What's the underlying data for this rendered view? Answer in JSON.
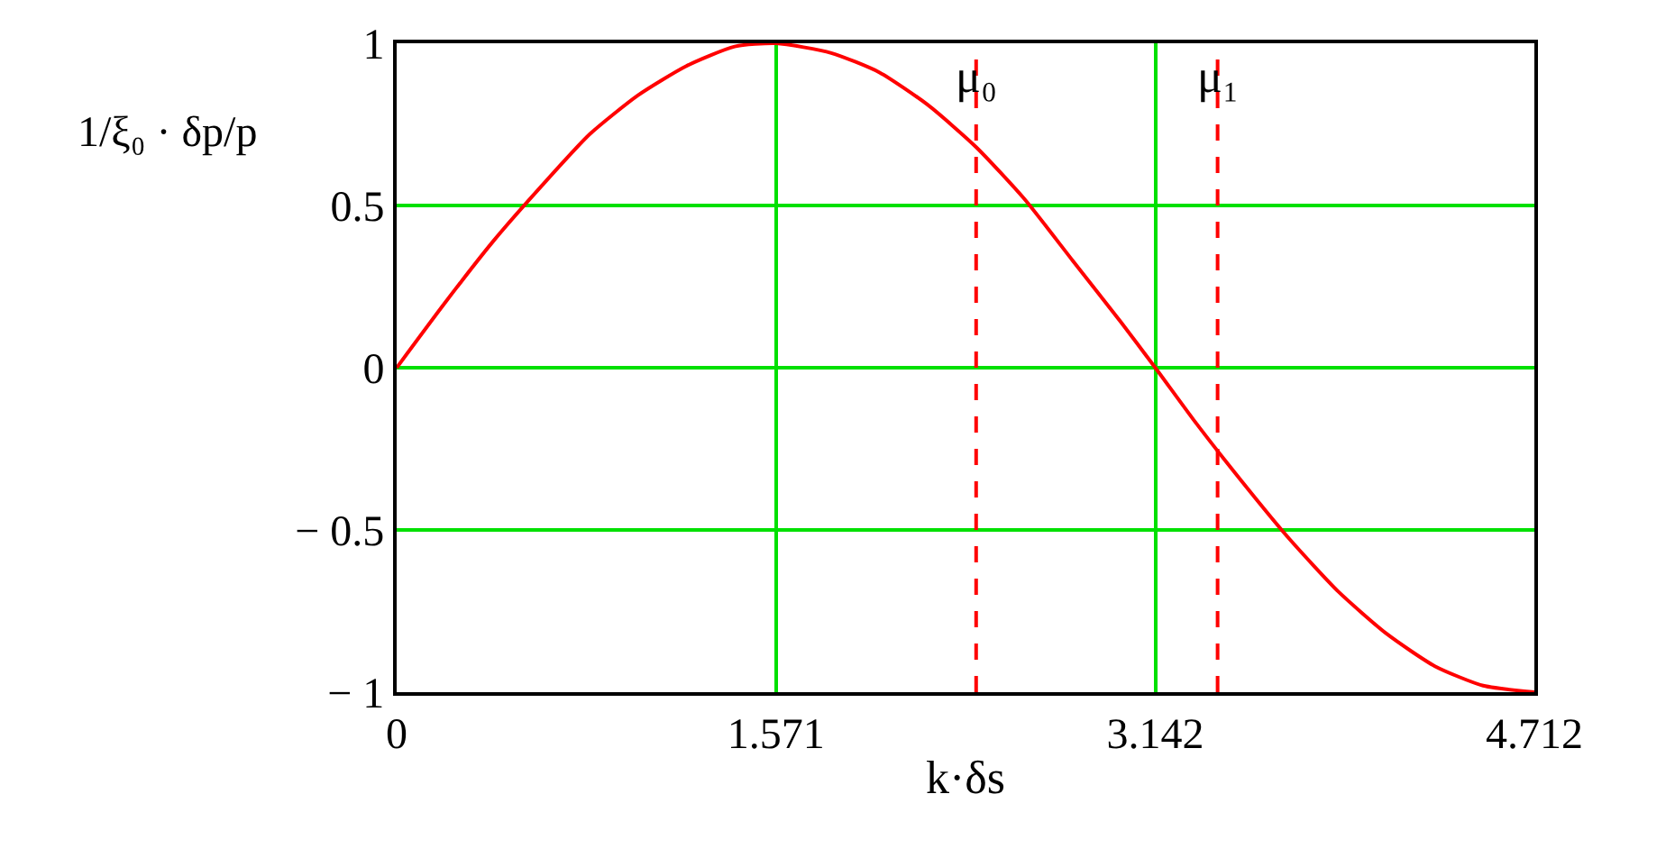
{
  "chart_data": {
    "type": "line",
    "xlabel": "k·δs",
    "ylabel": "1/ξ₀ · δp/p",
    "x": [
      0,
      0.2,
      0.4,
      0.6,
      0.8,
      1.0,
      1.2,
      1.4,
      1.571,
      1.8,
      2.0,
      2.2,
      2.4,
      2.6,
      2.8,
      3.0,
      3.142,
      3.3,
      3.5,
      3.7,
      3.9,
      4.1,
      4.3,
      4.5,
      4.712
    ],
    "series": [
      {
        "color": "#ff0000",
        "values": [
          0,
          0.2,
          0.39,
          0.56,
          0.72,
          0.84,
          0.93,
          0.99,
          1,
          0.97,
          0.91,
          0.81,
          0.68,
          0.52,
          0.33,
          0.14,
          0,
          -0.16,
          -0.35,
          -0.53,
          -0.69,
          -0.82,
          -0.92,
          -0.98,
          -1
        ]
      }
    ],
    "xlim": [
      0,
      4.712
    ],
    "xticks": [
      0,
      1.571,
      3.142,
      4.712
    ],
    "ylim": [
      -1,
      1
    ],
    "yticks": [
      {
        "value": -1,
        "label": "− 1"
      },
      {
        "value": -0.5,
        "label": "− 0.5"
      },
      0,
      0.5,
      1
    ],
    "grid": true,
    "line_style": "solid",
    "marker": "none",
    "ref_lines": [
      {
        "axis": "x",
        "value": 2.4,
        "label": "μ₀",
        "color": "#ff0000",
        "line_style": "dashed"
      },
      {
        "axis": "x",
        "value": 3.4,
        "label": "μ₁",
        "color": "#ff0000",
        "line_style": "dashed"
      }
    ]
  }
}
